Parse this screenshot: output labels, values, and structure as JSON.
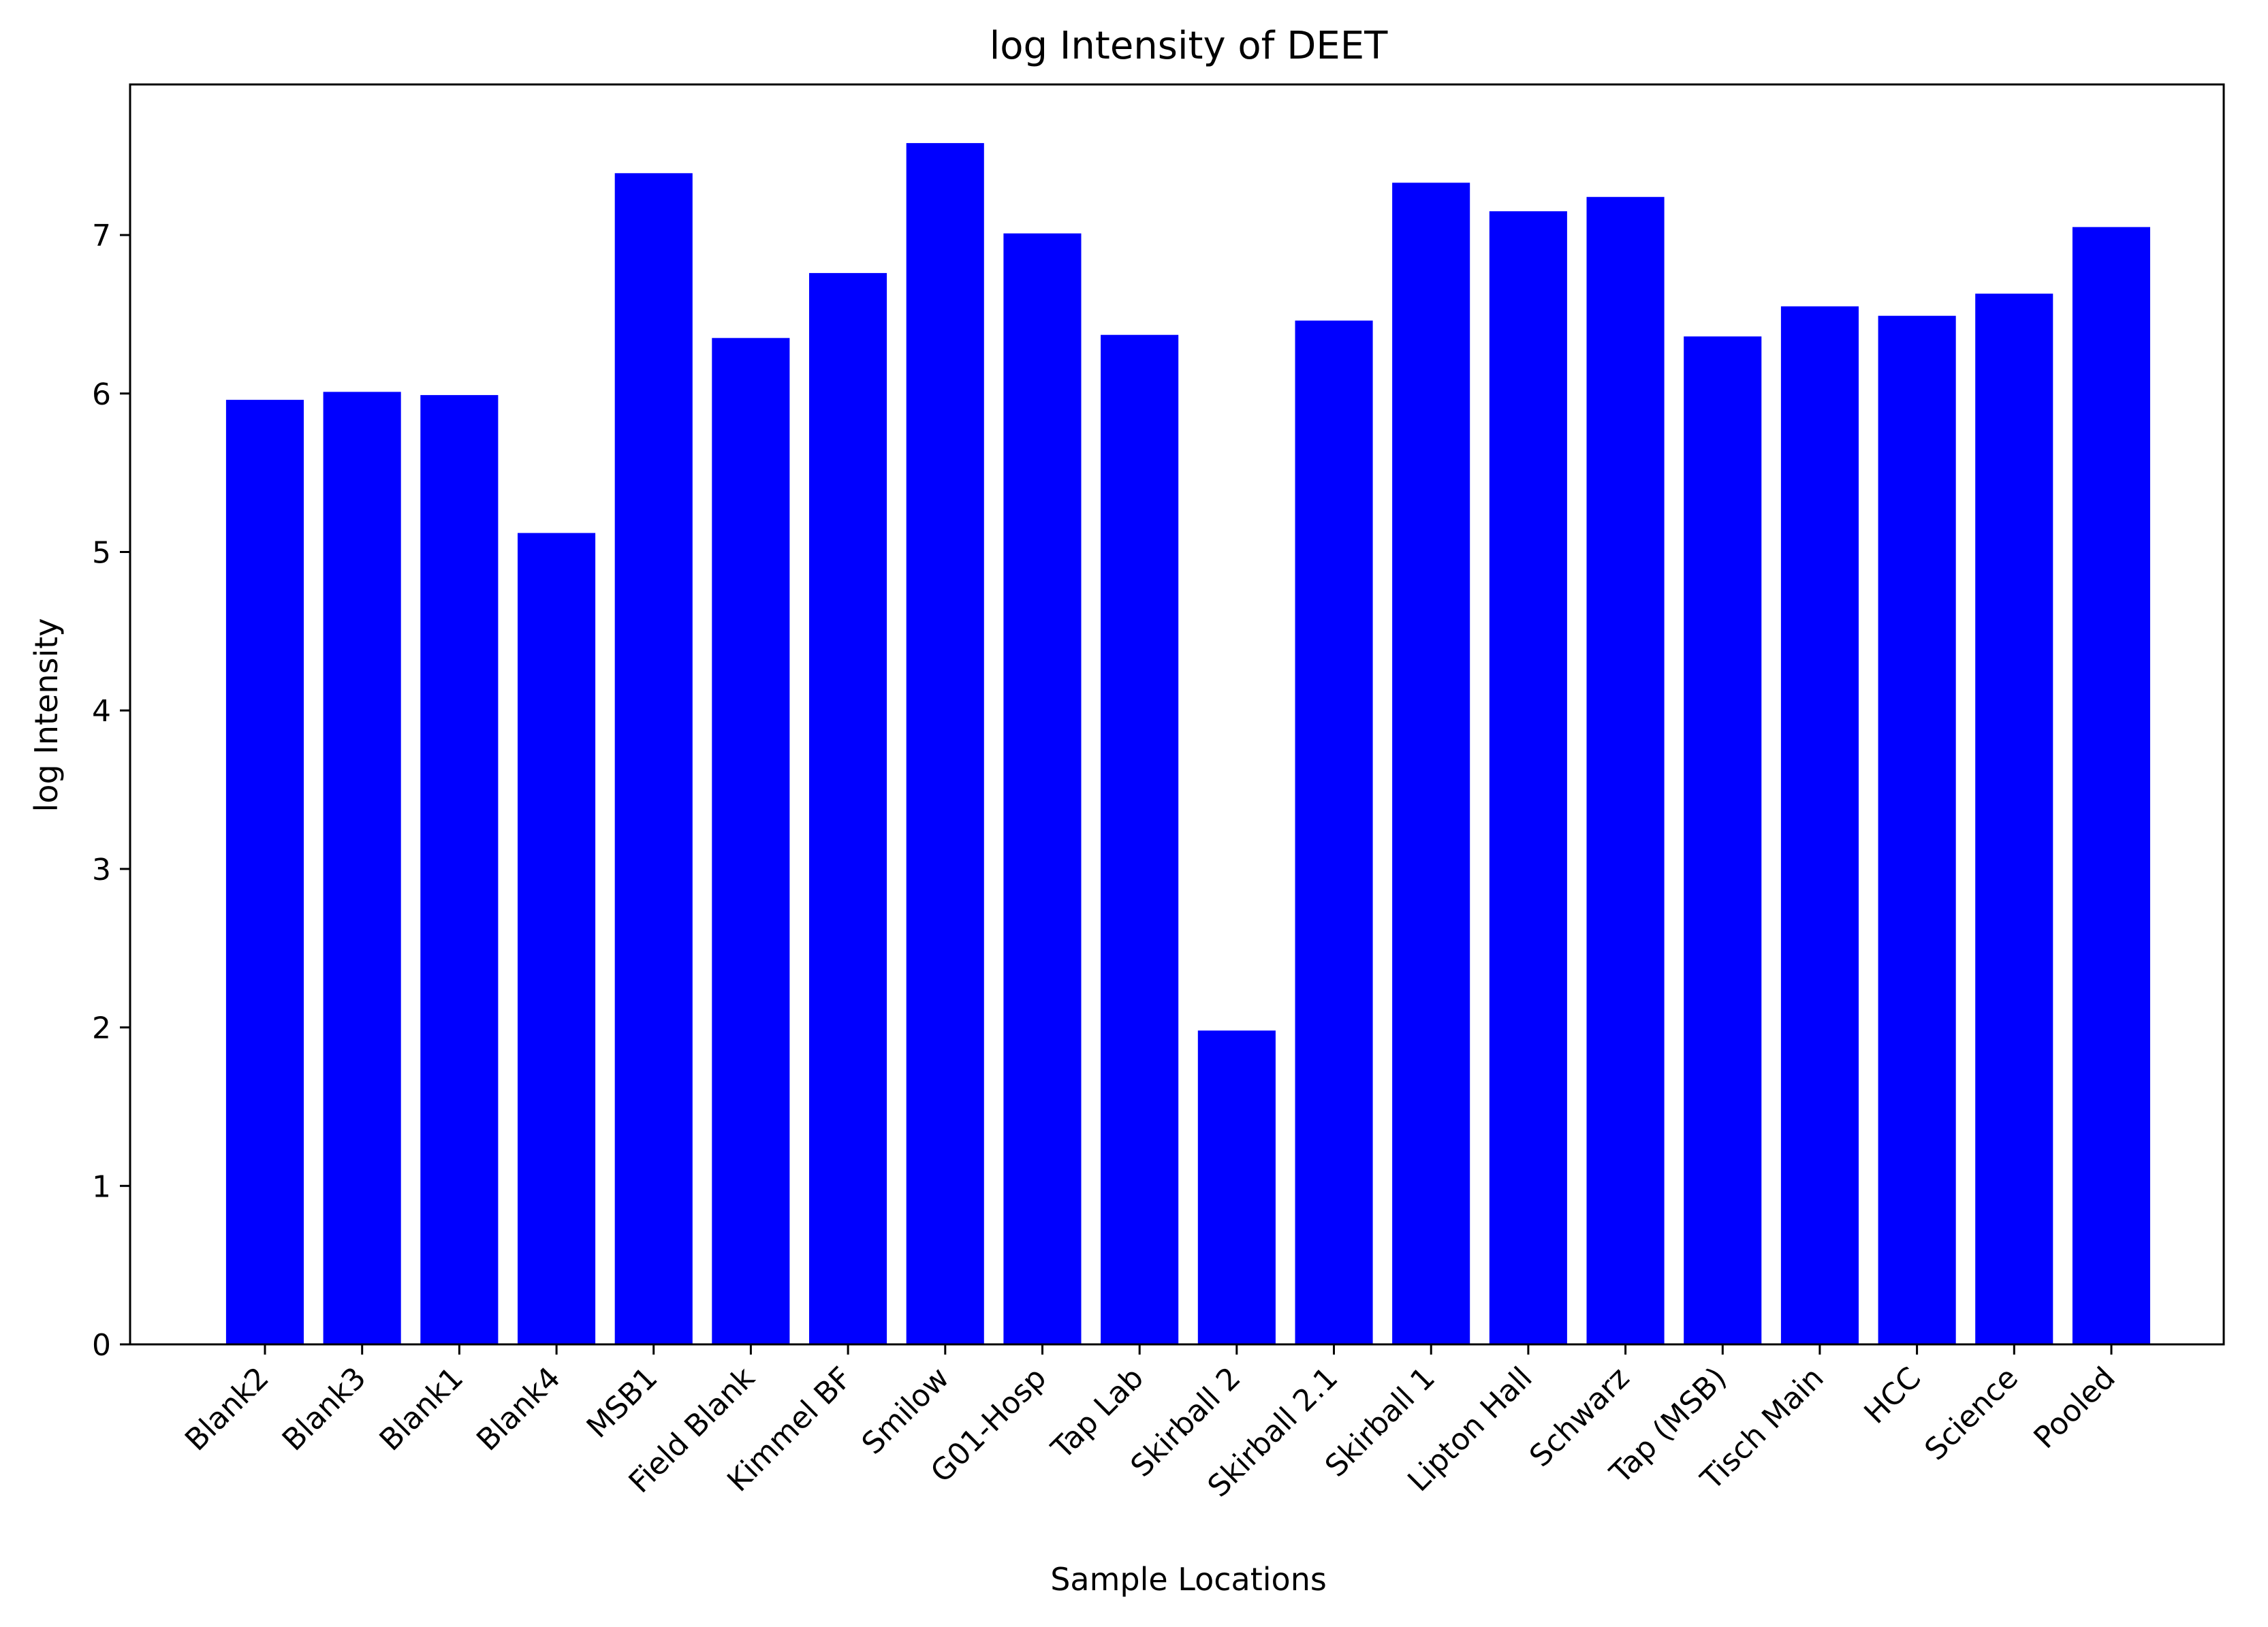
{
  "chart_data": {
    "type": "bar",
    "title": "log Intensity of DEET",
    "xlabel": "Sample Locations",
    "ylabel": "log Intensity",
    "categories": [
      "Blank2",
      "Blank3",
      "Blank1",
      "Blank4",
      "MSB1",
      "Field Blank",
      "Kimmel BF",
      "Smilow",
      "G01-Hosp",
      "Tap Lab",
      "Skirball 2",
      "Skirball 2.1",
      "Skirball 1",
      "Lipton Hall",
      "Schwarz",
      "Tap (MSB)",
      "Tisch Main",
      "HCC",
      "Science",
      "Pooled"
    ],
    "values": [
      5.96,
      6.01,
      5.99,
      5.12,
      7.39,
      6.35,
      6.76,
      7.58,
      7.01,
      6.37,
      1.98,
      6.46,
      7.33,
      7.15,
      7.24,
      6.36,
      6.55,
      6.49,
      6.63,
      7.05
    ],
    "yticks": [
      0,
      1,
      2,
      3,
      4,
      5,
      6,
      7
    ],
    "ylim": [
      0,
      7.95
    ],
    "bar_color": "#0000ff",
    "grid": false,
    "legend": false
  }
}
